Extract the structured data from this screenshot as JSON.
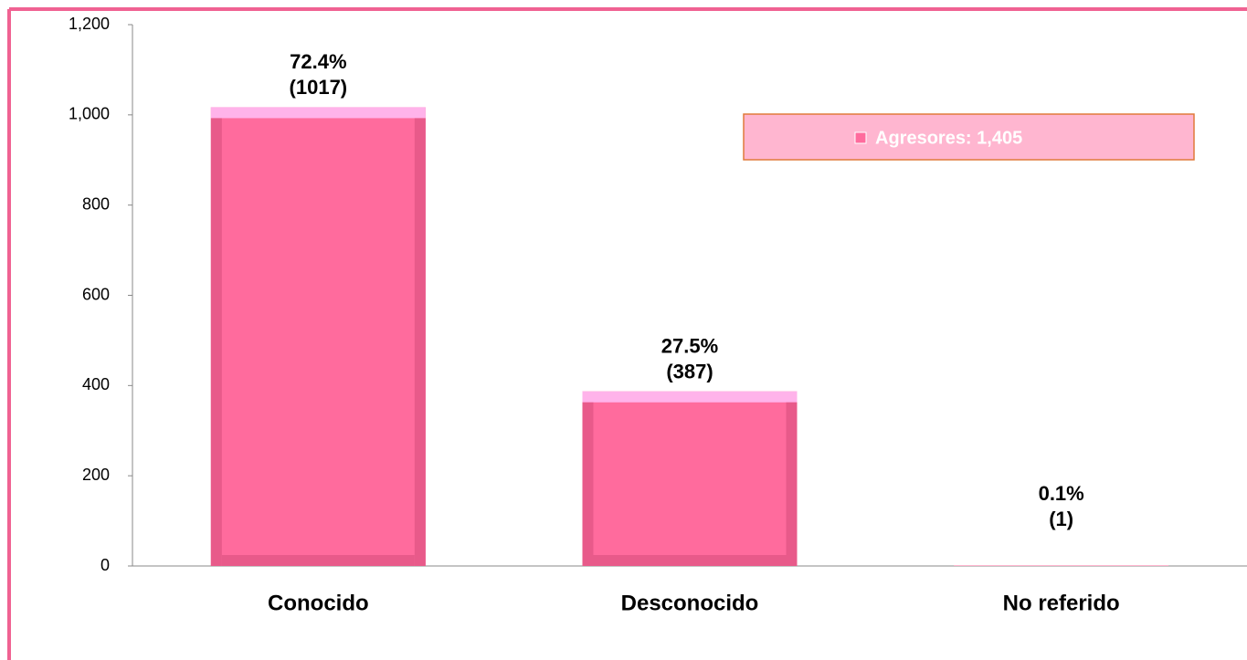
{
  "chart_data": {
    "type": "bar",
    "categories": [
      "Conocido",
      "Desconocido",
      "No referido"
    ],
    "series": [
      {
        "name": "Agresores: 1,405",
        "color": "#ff6b9d",
        "values": [
          1017,
          387,
          1
        ],
        "value_labels": [
          "(1017)",
          "(387)",
          "(1)"
        ]
      }
    ],
    "shares": {
      "values": [
        72.4,
        27.5,
        0.1
      ],
      "value_labels": [
        "72.4%",
        "27.5%",
        "0.1%"
      ]
    },
    "ylim": [
      0,
      1200
    ],
    "yticks": [
      0,
      200,
      400,
      600,
      800,
      {
        "value": 1000,
        "label": "1,000"
      },
      {
        "value": 1200,
        "label": "1,200"
      }
    ],
    "legend": "top-right",
    "grid": false
  }
}
